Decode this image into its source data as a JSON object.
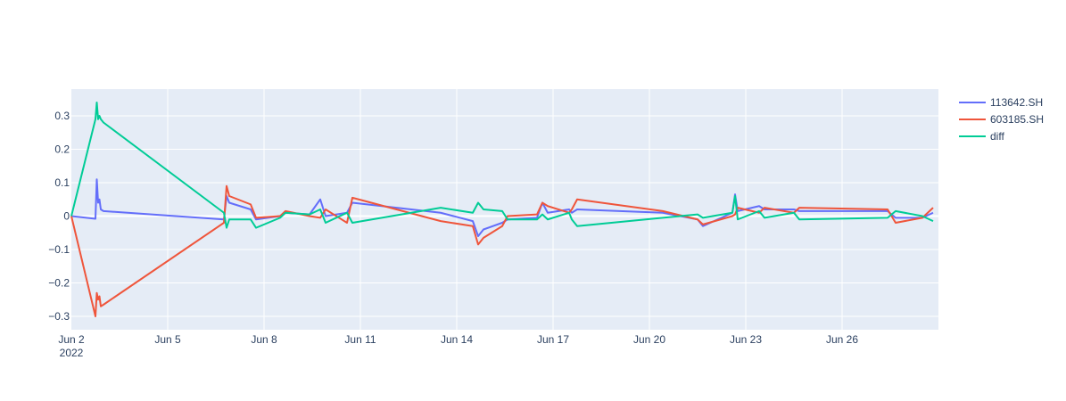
{
  "chart_data": {
    "type": "line",
    "x_axis": {
      "type": "date",
      "range": [
        "2022-06-02",
        "2022-06-29"
      ],
      "ticks": [
        {
          "x": "2022-06-02",
          "label": "Jun 2",
          "sub": "2022"
        },
        {
          "x": "2022-06-05",
          "label": "Jun 5"
        },
        {
          "x": "2022-06-08",
          "label": "Jun 8"
        },
        {
          "x": "2022-06-11",
          "label": "Jun 11"
        },
        {
          "x": "2022-06-14",
          "label": "Jun 14"
        },
        {
          "x": "2022-06-17",
          "label": "Jun 17"
        },
        {
          "x": "2022-06-20",
          "label": "Jun 20"
        },
        {
          "x": "2022-06-23",
          "label": "Jun 23"
        },
        {
          "x": "2022-06-26",
          "label": "Jun 26"
        }
      ]
    },
    "y_axis": {
      "range": [
        -0.34,
        0.38
      ],
      "ticks": [
        0.3,
        0.2,
        0.1,
        0,
        -0.1,
        -0.2,
        -0.3
      ],
      "tick_labels": [
        "0.3",
        "0.2",
        "0.1",
        "0",
        "−0.1",
        "−0.2",
        "−0.3"
      ]
    },
    "grid": true,
    "legend_position": "top-right",
    "series": [
      {
        "name": "113642.SH",
        "color": "#636efa",
        "points": [
          [
            "2022-06-02 00:00",
            0.0
          ],
          [
            "2022-06-02 18:00",
            -0.008
          ],
          [
            "2022-06-02 19:00",
            0.11
          ],
          [
            "2022-06-02 20:00",
            0.04
          ],
          [
            "2022-06-02 21:00",
            0.05
          ],
          [
            "2022-06-02 22:00",
            0.02
          ],
          [
            "2022-06-03 00:00",
            0.015
          ],
          [
            "2022-06-06 18:00",
            -0.01
          ],
          [
            "2022-06-06 20:00",
            0.06
          ],
          [
            "2022-06-06 22:00",
            0.04
          ],
          [
            "2022-06-07 14:00",
            0.02
          ],
          [
            "2022-06-07 18:00",
            -0.01
          ],
          [
            "2022-06-08 12:00",
            0.0
          ],
          [
            "2022-06-08 16:00",
            0.01
          ],
          [
            "2022-06-09 10:00",
            0.005
          ],
          [
            "2022-06-09 18:00",
            0.05
          ],
          [
            "2022-06-09 22:00",
            0.0
          ],
          [
            "2022-06-10 14:00",
            0.01
          ],
          [
            "2022-06-10 18:00",
            0.04
          ],
          [
            "2022-06-13 12:00",
            0.01
          ],
          [
            "2022-06-14 12:00",
            -0.015
          ],
          [
            "2022-06-14 16:00",
            -0.06
          ],
          [
            "2022-06-14 20:00",
            -0.04
          ],
          [
            "2022-06-15 10:00",
            -0.02
          ],
          [
            "2022-06-15 14:00",
            -0.01
          ],
          [
            "2022-06-16 12:00",
            -0.005
          ],
          [
            "2022-06-16 16:00",
            0.04
          ],
          [
            "2022-06-16 20:00",
            0.01
          ],
          [
            "2022-06-17 12:00",
            0.02
          ],
          [
            "2022-06-17 14:00",
            0.01
          ],
          [
            "2022-06-17 18:00",
            0.02
          ],
          [
            "2022-06-20 10:00",
            0.01
          ],
          [
            "2022-06-21 12:00",
            -0.01
          ],
          [
            "2022-06-21 16:00",
            -0.03
          ],
          [
            "2022-06-22 14:00",
            0.01
          ],
          [
            "2022-06-22 16:00",
            0.065
          ],
          [
            "2022-06-22 18:00",
            0.015
          ],
          [
            "2022-06-23 10:00",
            0.03
          ],
          [
            "2022-06-23 14:00",
            0.02
          ],
          [
            "2022-06-24 12:00",
            0.02
          ],
          [
            "2022-06-24 16:00",
            0.015
          ],
          [
            "2022-06-27 10:00",
            0.015
          ],
          [
            "2022-06-27 16:00",
            -0.005
          ],
          [
            "2022-06-28 12:00",
            -0.005
          ],
          [
            "2022-06-28 20:00",
            0.01
          ]
        ]
      },
      {
        "name": "603185.SH",
        "color": "#ef553b",
        "points": [
          [
            "2022-06-02 00:00",
            0.0
          ],
          [
            "2022-06-02 18:00",
            -0.3
          ],
          [
            "2022-06-02 19:00",
            -0.23
          ],
          [
            "2022-06-02 20:00",
            -0.25
          ],
          [
            "2022-06-02 21:00",
            -0.24
          ],
          [
            "2022-06-02 22:00",
            -0.27
          ],
          [
            "2022-06-03 00:00",
            -0.265
          ],
          [
            "2022-06-06 18:00",
            -0.02
          ],
          [
            "2022-06-06 20:00",
            0.09
          ],
          [
            "2022-06-06 22:00",
            0.06
          ],
          [
            "2022-06-07 14:00",
            0.035
          ],
          [
            "2022-06-07 18:00",
            -0.005
          ],
          [
            "2022-06-08 12:00",
            0.0
          ],
          [
            "2022-06-08 16:00",
            0.015
          ],
          [
            "2022-06-09 10:00",
            0.0
          ],
          [
            "2022-06-09 18:00",
            -0.005
          ],
          [
            "2022-06-09 22:00",
            0.02
          ],
          [
            "2022-06-10 14:00",
            -0.02
          ],
          [
            "2022-06-10 18:00",
            0.055
          ],
          [
            "2022-06-13 12:00",
            -0.015
          ],
          [
            "2022-06-14 12:00",
            -0.03
          ],
          [
            "2022-06-14 16:00",
            -0.085
          ],
          [
            "2022-06-14 20:00",
            -0.065
          ],
          [
            "2022-06-15 10:00",
            -0.03
          ],
          [
            "2022-06-15 14:00",
            0.0
          ],
          [
            "2022-06-16 12:00",
            0.005
          ],
          [
            "2022-06-16 16:00",
            0.04
          ],
          [
            "2022-06-16 20:00",
            0.03
          ],
          [
            "2022-06-17 12:00",
            0.01
          ],
          [
            "2022-06-17 14:00",
            0.02
          ],
          [
            "2022-06-17 18:00",
            0.05
          ],
          [
            "2022-06-20 10:00",
            0.015
          ],
          [
            "2022-06-21 12:00",
            -0.01
          ],
          [
            "2022-06-21 16:00",
            -0.025
          ],
          [
            "2022-06-22 14:00",
            0.0
          ],
          [
            "2022-06-22 16:00",
            0.005
          ],
          [
            "2022-06-22 18:00",
            0.025
          ],
          [
            "2022-06-23 10:00",
            0.01
          ],
          [
            "2022-06-23 14:00",
            0.025
          ],
          [
            "2022-06-24 12:00",
            0.01
          ],
          [
            "2022-06-24 16:00",
            0.025
          ],
          [
            "2022-06-27 10:00",
            0.02
          ],
          [
            "2022-06-27 16:00",
            -0.02
          ],
          [
            "2022-06-28 12:00",
            -0.005
          ],
          [
            "2022-06-28 20:00",
            0.025
          ]
        ]
      },
      {
        "name": "diff",
        "color": "#00cc96",
        "points": [
          [
            "2022-06-02 00:00",
            0.0
          ],
          [
            "2022-06-02 18:00",
            0.29
          ],
          [
            "2022-06-02 19:00",
            0.34
          ],
          [
            "2022-06-02 20:00",
            0.29
          ],
          [
            "2022-06-02 21:00",
            0.3
          ],
          [
            "2022-06-02 22:00",
            0.29
          ],
          [
            "2022-06-03 00:00",
            0.28
          ],
          [
            "2022-06-06 18:00",
            0.01
          ],
          [
            "2022-06-06 20:00",
            -0.035
          ],
          [
            "2022-06-06 22:00",
            -0.01
          ],
          [
            "2022-06-07 14:00",
            -0.01
          ],
          [
            "2022-06-07 18:00",
            -0.035
          ],
          [
            "2022-06-08 12:00",
            -0.005
          ],
          [
            "2022-06-08 16:00",
            0.01
          ],
          [
            "2022-06-09 10:00",
            0.005
          ],
          [
            "2022-06-09 18:00",
            0.02
          ],
          [
            "2022-06-09 22:00",
            -0.02
          ],
          [
            "2022-06-10 14:00",
            0.01
          ],
          [
            "2022-06-10 18:00",
            -0.02
          ],
          [
            "2022-06-13 12:00",
            0.025
          ],
          [
            "2022-06-14 12:00",
            0.01
          ],
          [
            "2022-06-14 16:00",
            0.04
          ],
          [
            "2022-06-14 20:00",
            0.02
          ],
          [
            "2022-06-15 10:00",
            0.015
          ],
          [
            "2022-06-15 14:00",
            -0.01
          ],
          [
            "2022-06-16 12:00",
            -0.01
          ],
          [
            "2022-06-16 16:00",
            0.005
          ],
          [
            "2022-06-16 20:00",
            -0.01
          ],
          [
            "2022-06-17 12:00",
            0.01
          ],
          [
            "2022-06-17 14:00",
            -0.01
          ],
          [
            "2022-06-17 18:00",
            -0.03
          ],
          [
            "2022-06-20 10:00",
            -0.005
          ],
          [
            "2022-06-21 12:00",
            0.005
          ],
          [
            "2022-06-21 16:00",
            -0.005
          ],
          [
            "2022-06-22 14:00",
            0.01
          ],
          [
            "2022-06-22 16:00",
            0.06
          ],
          [
            "2022-06-22 18:00",
            -0.01
          ],
          [
            "2022-06-23 10:00",
            0.015
          ],
          [
            "2022-06-23 14:00",
            -0.005
          ],
          [
            "2022-06-24 12:00",
            0.01
          ],
          [
            "2022-06-24 16:00",
            -0.01
          ],
          [
            "2022-06-27 10:00",
            -0.005
          ],
          [
            "2022-06-27 16:00",
            0.015
          ],
          [
            "2022-06-28 12:00",
            0.0
          ],
          [
            "2022-06-28 20:00",
            -0.015
          ]
        ]
      }
    ]
  }
}
